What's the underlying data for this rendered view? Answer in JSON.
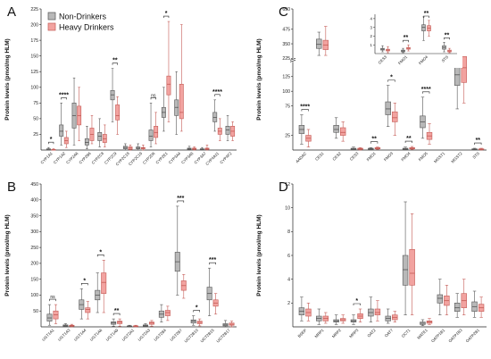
{
  "colors": {
    "non_drinkers": "#b8b8b8",
    "non_drinkers_edge": "#555555",
    "heavy_drinkers": "#f2a3a0",
    "heavy_drinkers_edge": "#c45a55"
  },
  "chart_data": [
    {
      "type": "box",
      "panel": "A",
      "ylabel": "Protein levels (pmol/mg HLM)",
      "yticks": [
        25,
        50,
        75,
        100,
        125,
        150,
        175,
        200,
        225
      ],
      "ylim": [
        0,
        225
      ],
      "legend": {
        "position": "top-left",
        "entries": [
          "Non-Drinkers",
          "Heavy Drinkers"
        ]
      },
      "categories": [
        "CYP1A1",
        "CYP1A2",
        "CYP2A6",
        "CYP2B6",
        "CYP2C8",
        "CYP2C9",
        "CYP2C18",
        "CYP2C19",
        "CYP2D6",
        "CYP2E1",
        "CYP3A4",
        "CYP3A5",
        "CYP3A7",
        "CYP4A11",
        "CYP4F2"
      ],
      "series": [
        {
          "name": "Non-Drinkers",
          "boxes": [
            [
              0,
              0,
              1,
              2,
              4
            ],
            [
              8,
              22,
              30,
              40,
              75
            ],
            [
              8,
              35,
              55,
              75,
              115
            ],
            [
              2,
              8,
              12,
              18,
              38
            ],
            [
              5,
              15,
              22,
              28,
              50
            ],
            [
              45,
              80,
              88,
              95,
              130
            ],
            [
              0,
              2,
              4,
              6,
              10
            ],
            [
              0,
              2,
              3,
              5,
              10
            ],
            [
              5,
              15,
              22,
              32,
              75
            ],
            [
              30,
              52,
              60,
              68,
              100
            ],
            [
              25,
              55,
              68,
              80,
              125
            ],
            [
              0,
              1,
              2,
              3,
              6
            ],
            [
              0,
              1,
              1,
              2,
              4
            ],
            [
              30,
              45,
              52,
              60,
              80
            ],
            [
              15,
              25,
              32,
              38,
              55
            ]
          ]
        },
        {
          "name": "Heavy Drinkers",
          "boxes": [
            [
              0,
              0,
              0,
              1,
              2
            ],
            [
              4,
              10,
              15,
              20,
              30
            ],
            [
              15,
              40,
              55,
              70,
              100
            ],
            [
              10,
              15,
              25,
              35,
              55
            ],
            [
              5,
              12,
              18,
              25,
              40
            ],
            [
              25,
              48,
              55,
              72,
              85
            ],
            [
              0,
              1,
              3,
              5,
              8
            ],
            [
              0,
              2,
              3,
              4,
              8
            ],
            [
              10,
              20,
              28,
              38,
              60
            ],
            [
              45,
              88,
              105,
              118,
              205
            ],
            [
              30,
              50,
              60,
              105,
              200
            ],
            [
              0,
              1,
              2,
              3,
              5
            ],
            [
              0,
              1,
              2,
              3,
              8
            ],
            [
              15,
              25,
              30,
              35,
              50
            ],
            [
              15,
              22,
              30,
              38,
              45
            ]
          ]
        }
      ],
      "significance": [
        {
          "category": "CYP1A1",
          "label": "*"
        },
        {
          "category": "CYP1A2",
          "label": "****"
        },
        {
          "category": "CYP2C9",
          "label": "**"
        },
        {
          "category": "CYP2D6",
          "label": "ns"
        },
        {
          "category": "CYP2E1",
          "label": "*"
        },
        {
          "category": "CYP4A11",
          "label": "****"
        }
      ]
    },
    {
      "type": "box",
      "panel": "B",
      "ylabel": "Protein levels (pmol/mg HLM)",
      "yticks": [
        50,
        100,
        150,
        200,
        250,
        300,
        350,
        400,
        450
      ],
      "ylim": [
        0,
        450
      ],
      "categories": [
        "UGT1A1",
        "UGT1A3",
        "UGT1A4",
        "UGT1A6",
        "UGT1A9",
        "UGT2A1",
        "UGT2A3",
        "UGT2B4",
        "UGT2B7",
        "UGT2B10",
        "UGT2B15",
        "UGT2B17"
      ],
      "series": [
        {
          "name": "Non-Drinkers",
          "boxes": [
            [
              5,
              18,
              28,
              40,
              70
            ],
            [
              0,
              2,
              4,
              6,
              10
            ],
            [
              25,
              55,
              70,
              85,
              120
            ],
            [
              45,
              85,
              100,
              115,
              170
            ],
            [
              2,
              8,
              12,
              16,
              25
            ],
            [
              0,
              1,
              2,
              3,
              5
            ],
            [
              0,
              2,
              4,
              6,
              10
            ],
            [
              15,
              30,
              40,
              50,
              70
            ],
            [
              100,
              175,
              205,
              235,
              380
            ],
            [
              5,
              12,
              18,
              22,
              35
            ],
            [
              35,
              85,
              105,
              125,
              185
            ],
            [
              0,
              3,
              6,
              10,
              20
            ]
          ]
        },
        {
          "name": "Heavy Drinkers",
          "boxes": [
            [
              10,
              25,
              38,
              50,
              70
            ],
            [
              0,
              2,
              4,
              5,
              8
            ],
            [
              25,
              45,
              55,
              60,
              80
            ],
            [
              45,
              105,
              140,
              170,
              210
            ],
            [
              2,
              10,
              15,
              18,
              25
            ],
            [
              0,
              1,
              2,
              3,
              5
            ],
            [
              2,
              8,
              12,
              15,
              20
            ],
            [
              20,
              35,
              45,
              52,
              65
            ],
            [
              90,
              115,
              130,
              145,
              165
            ],
            [
              3,
              10,
              14,
              18,
              25
            ],
            [
              40,
              65,
              75,
              85,
              105
            ],
            [
              0,
              5,
              8,
              12,
              18
            ]
          ]
        }
      ],
      "significance": [
        {
          "category": "UGT1A1",
          "label": "ns"
        },
        {
          "category": "UGT1A4",
          "label": "*"
        },
        {
          "category": "UGT1A6",
          "label": "*"
        },
        {
          "category": "UGT1A9",
          "label": "**"
        },
        {
          "category": "UGT2B7",
          "label": "***"
        },
        {
          "category": "UGT2B10",
          "label": "*"
        },
        {
          "category": "UGT2B15",
          "label": "***"
        }
      ]
    },
    {
      "type": "box",
      "panel": "C",
      "ylabel": "Protein levels (pmol/mg HLM)",
      "yticks": [
        25,
        75,
        100,
        125,
        225,
        350,
        475,
        650
      ],
      "ylim": [
        0,
        650
      ],
      "axis_break": [
        150,
        225
      ],
      "categories": [
        "AADAC",
        "CES1",
        "CES2",
        "CES3",
        "FMO1",
        "FMO3",
        "FMO4",
        "FMO5",
        "MGST1",
        "MGST2",
        "STS"
      ],
      "series": [
        {
          "name": "Non-Drinkers",
          "boxes": [
            [
              10,
              28,
              35,
              42,
              60
            ],
            [
              250,
              310,
              345,
              390,
              450
            ],
            [
              20,
              30,
              35,
              42,
              55
            ],
            [
              0,
              1,
              2,
              3,
              5
            ],
            [
              0,
              1,
              2,
              3,
              4
            ],
            [
              40,
              60,
              70,
              82,
              110
            ],
            [
              0,
              1,
              2,
              3,
              5
            ],
            [
              20,
              38,
              48,
              58,
              90
            ],
            [
              225,
              280,
              325,
              380,
              500
            ],
            [
              70,
              110,
              128,
              145,
              180
            ],
            [
              0,
              1,
              1,
              2,
              3
            ]
          ]
        },
        {
          "name": "Heavy Drinkers",
          "boxes": [
            [
              5,
              15,
              20,
              25,
              35
            ],
            [
              250,
              300,
              340,
              380,
              500
            ],
            [
              15,
              25,
              30,
              38,
              48
            ],
            [
              0,
              1,
              2,
              3,
              4
            ],
            [
              1,
              2,
              3,
              4,
              5
            ],
            [
              25,
              48,
              55,
              65,
              80
            ],
            [
              1,
              2,
              3,
              4,
              6
            ],
            [
              10,
              18,
              24,
              30,
              45
            ],
            [
              225,
              320,
              380,
              460,
              640
            ],
            [
              80,
              115,
              140,
              160,
              200
            ],
            [
              0,
              1,
              1,
              2,
              3
            ]
          ]
        }
      ],
      "significance": [
        {
          "category": "AADAC",
          "label": "****"
        },
        {
          "category": "FMO1",
          "label": "**"
        },
        {
          "category": "FMO3",
          "label": "*"
        },
        {
          "category": "FMO4",
          "label": "**"
        },
        {
          "category": "FMO5",
          "label": "****"
        },
        {
          "category": "STS",
          "label": "**"
        }
      ],
      "inset": {
        "categories": [
          "CES3",
          "FMO1",
          "FMO4",
          "STS"
        ],
        "yticks": [
          1,
          2,
          3,
          4
        ],
        "ylim": [
          0,
          4.5
        ],
        "series": [
          {
            "name": "Non-Drinkers",
            "boxes": [
              [
                0.2,
                0.4,
                0.5,
                0.6,
                0.9
              ],
              [
                0.1,
                0.2,
                0.3,
                0.4,
                0.6
              ],
              [
                1.5,
                2.6,
                3.0,
                3.3,
                4.2
              ],
              [
                0.2,
                0.5,
                0.7,
                0.9,
                1.3
              ]
            ]
          },
          {
            "name": "Heavy Drinkers",
            "boxes": [
              [
                0.1,
                0.3,
                0.4,
                0.5,
                0.8
              ],
              [
                0.3,
                0.5,
                0.6,
                0.7,
                1.0
              ],
              [
                2.0,
                2.6,
                2.9,
                3.2,
                3.8
              ],
              [
                0.1,
                0.2,
                0.3,
                0.4,
                0.6
              ]
            ]
          }
        ],
        "significance": [
          {
            "category": "FMO1",
            "label": "**"
          },
          {
            "category": "FMO4",
            "label": "**"
          },
          {
            "category": "STS",
            "label": "**"
          }
        ]
      }
    },
    {
      "type": "box",
      "panel": "D",
      "ylabel": "Protein levels (pmol/mg HLM)",
      "yticks": [
        2,
        4,
        6,
        8,
        10,
        12
      ],
      "ylim": [
        0,
        12
      ],
      "categories": [
        "BSEP",
        "MRP1",
        "MRP2",
        "MRP3",
        "OAT2",
        "OAT7",
        "OCT1",
        "MATE1",
        "OATP1B1",
        "OATP1B3",
        "OATP2B1"
      ],
      "series": [
        {
          "name": "Non-Drinkers",
          "boxes": [
            [
              0.5,
              1.0,
              1.3,
              1.6,
              2.5
            ],
            [
              0.2,
              0.5,
              0.7,
              0.9,
              1.5
            ],
            [
              0.2,
              0.4,
              0.5,
              0.6,
              1.0
            ],
            [
              0.2,
              0.4,
              0.5,
              0.6,
              1.0
            ],
            [
              0.4,
              0.9,
              1.2,
              1.5,
              2.5
            ],
            [
              0.3,
              0.5,
              0.7,
              0.9,
              1.5
            ],
            [
              1.0,
              3.5,
              4.8,
              6.0,
              10.5
            ],
            [
              0.1,
              0.2,
              0.3,
              0.4,
              0.6
            ],
            [
              1.0,
              2.0,
              2.4,
              2.7,
              4.0
            ],
            [
              0.8,
              1.3,
              1.6,
              2.0,
              2.8
            ],
            [
              0.8,
              1.3,
              1.7,
              2.1,
              3.0
            ]
          ]
        },
        {
          "name": "Heavy Drinkers",
          "boxes": [
            [
              0.5,
              0.9,
              1.2,
              1.5,
              2.0
            ],
            [
              0.3,
              0.5,
              0.7,
              0.9,
              1.2
            ],
            [
              0.3,
              0.5,
              0.6,
              0.7,
              1.0
            ],
            [
              0.4,
              0.7,
              0.9,
              1.1,
              1.5
            ],
            [
              0.5,
              1.0,
              1.2,
              1.5,
              2.2
            ],
            [
              0.4,
              0.6,
              0.8,
              1.0,
              1.3
            ],
            [
              1.0,
              3.5,
              4.5,
              6.5,
              9.5
            ],
            [
              0.2,
              0.3,
              0.4,
              0.5,
              0.7
            ],
            [
              1.0,
              1.8,
              2.2,
              2.6,
              3.5
            ],
            [
              1.0,
              1.6,
              2.2,
              2.8,
              4.0
            ],
            [
              0.8,
              1.3,
              1.6,
              1.9,
              2.5
            ]
          ]
        }
      ],
      "significance": [
        {
          "category": "MRP3",
          "label": "*"
        }
      ]
    }
  ]
}
